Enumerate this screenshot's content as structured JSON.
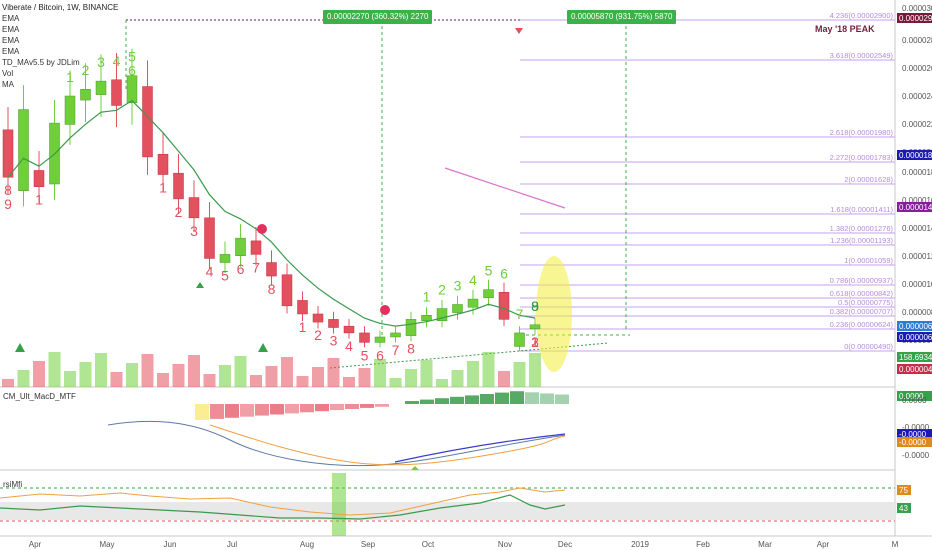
{
  "symbol_title": "Viberate / Bitcoin, 1W, BINANCE",
  "indicators": [
    "EMA",
    "EMA",
    "EMA",
    "EMA",
    "TD_MAv5.5 by JDLim",
    "Vol",
    "MA"
  ],
  "callouts": [
    {
      "text": "0.00002270 (360.32%) 2270"
    },
    {
      "text": "0.00005870 (931.75%) 5870"
    }
  ],
  "peak_label": "May '18 PEAK",
  "macd_label": "CM_Ult_MacD_MTF",
  "rsi_label": "rsiMfi",
  "colors": {
    "up": "#6ecf3a",
    "down": "#e3515f",
    "ema": "#3a9a4b",
    "fib": "#c7a0ec",
    "callout": "#3bb14b",
    "peakbox": "#7a1a3a"
  },
  "price_axis": [
    "0.00003000",
    "0.00002800",
    "0.00002600",
    "0.00002400",
    "0.00002200",
    "0.00002000",
    "0.00001850",
    "0.00001600",
    "0.00001400",
    "0.00001200",
    "0.00001000",
    "0.00000800",
    "0.00000600",
    "0.00000400"
  ],
  "price_tags": [
    {
      "text": "0.00002900",
      "color": "#7a1a3a"
    },
    {
      "text": "0.00001869",
      "color": "#1b1bb3"
    },
    {
      "text": "0.00001476",
      "color": "#8a1aa0"
    },
    {
      "text": "0.00000672",
      "color": "#2a7dd1"
    },
    {
      "text": "0.00000653",
      "color": "#1b1bb3"
    },
    {
      "text": "158.6934K",
      "color": "#36a04a"
    },
    {
      "text": "0.00000431",
      "color": "#c0304a"
    }
  ],
  "fib_levels": [
    {
      "label": "4.236(0.00002900)"
    },
    {
      "label": "3.618(0.00002549)"
    },
    {
      "label": "2.618(0.00001980)"
    },
    {
      "label": "2.272(0.00001783)"
    },
    {
      "label": "2(0.00001628)"
    },
    {
      "label": "1.618(0.00001411)"
    },
    {
      "label": "1.382(0.00001276)"
    },
    {
      "label": "1.236(0.00001193)"
    },
    {
      "label": "1(0.00001059)"
    },
    {
      "label": "0.786(0.00000937)"
    },
    {
      "label": "0.618(0.00000842)"
    },
    {
      "label": "0.5(0.00000775)"
    },
    {
      "label": "0.382(0.00000707)"
    },
    {
      "label": "0.236(0.00000624)"
    },
    {
      "label": "0(0.00000490)"
    }
  ],
  "macd_axis": [
    "0.0000",
    "-0.0000",
    "-0.0000"
  ],
  "macd_tags": [
    {
      "text": "0.0000",
      "color": "#36a04a"
    },
    {
      "text": "-0.0000",
      "color": "#1b1bb3"
    },
    {
      "text": "-0.0000",
      "color": "#e08a1e"
    }
  ],
  "rsi_tags": [
    {
      "text": "75",
      "color": "#e08a1e"
    },
    {
      "text": "43",
      "color": "#36a04a"
    }
  ],
  "time_axis": [
    "Apr",
    "May",
    "Jun",
    "Jul",
    "Aug",
    "Sep",
    "Oct",
    "Nov",
    "Dec",
    "2019",
    "Feb",
    "Mar",
    "Apr",
    "M"
  ],
  "chart_data": {
    "type": "candlestick",
    "interval": "1W",
    "candles": [
      {
        "o": 2.1e-05,
        "c": 1.75e-05,
        "up": false
      },
      {
        "o": 1.65e-05,
        "c": 2.25e-05,
        "up": true
      },
      {
        "o": 1.8e-05,
        "c": 1.68e-05,
        "up": false
      },
      {
        "o": 1.7e-05,
        "c": 2.15e-05,
        "up": true
      },
      {
        "o": 2.14e-05,
        "c": 2.35e-05,
        "up": true
      },
      {
        "o": 2.32e-05,
        "c": 2.4e-05,
        "up": true
      },
      {
        "o": 2.36e-05,
        "c": 2.46e-05,
        "up": true
      },
      {
        "o": 2.47e-05,
        "c": 2.28e-05,
        "up": false
      },
      {
        "o": 2.3e-05,
        "c": 2.5e-05,
        "up": true
      },
      {
        "o": 2.42e-05,
        "c": 1.9e-05,
        "up": false
      },
      {
        "o": 1.92e-05,
        "c": 1.77e-05,
        "up": false
      },
      {
        "o": 1.78e-05,
        "c": 1.59e-05,
        "up": false
      },
      {
        "o": 1.6e-05,
        "c": 1.45e-05,
        "up": false
      },
      {
        "o": 1.45e-05,
        "c": 1.15e-05,
        "up": false
      },
      {
        "o": 1.12e-05,
        "c": 1.18e-05,
        "up": true
      },
      {
        "o": 1.17e-05,
        "c": 1.3e-05,
        "up": true
      },
      {
        "o": 1.28e-05,
        "c": 1.18e-05,
        "up": false
      },
      {
        "o": 1.12e-05,
        "c": 1.02e-05,
        "up": false
      },
      {
        "o": 1.03e-05,
        "c": 8e-06,
        "up": false
      },
      {
        "o": 8.4e-06,
        "c": 7.4e-06,
        "up": false
      },
      {
        "o": 7.4e-06,
        "c": 6.8e-06,
        "up": false
      },
      {
        "o": 7e-06,
        "c": 6.4e-06,
        "up": false
      },
      {
        "o": 6.5e-06,
        "c": 6e-06,
        "up": false
      },
      {
        "o": 6e-06,
        "c": 5.3e-06,
        "up": false
      },
      {
        "o": 5.3e-06,
        "c": 5.7e-06,
        "up": true
      },
      {
        "o": 5.7e-06,
        "c": 6e-06,
        "up": true
      },
      {
        "o": 5.8e-06,
        "c": 7e-06,
        "up": true
      },
      {
        "o": 6.9e-06,
        "c": 7.3e-06,
        "up": true
      },
      {
        "o": 6.9e-06,
        "c": 7.8e-06,
        "up": true
      },
      {
        "o": 7.5e-06,
        "c": 8.1e-06,
        "up": true
      },
      {
        "o": 7.9e-06,
        "c": 8.5e-06,
        "up": true
      },
      {
        "o": 8.6e-06,
        "c": 9.2e-06,
        "up": true
      },
      {
        "o": 9e-06,
        "c": 7e-06,
        "up": false
      },
      {
        "o": 5e-06,
        "c": 6e-06,
        "up": true
      },
      {
        "o": 6.3e-06,
        "c": 6.6e-06,
        "up": true
      }
    ],
    "td_counts": [
      {
        "i": 0,
        "t": "8",
        "c": "#e3515f"
      },
      {
        "i": 0,
        "t": "9",
        "c": "#e3515f"
      },
      {
        "i": 2,
        "t": "1",
        "c": "#e3515f"
      },
      {
        "i": 4,
        "t": "1",
        "c": "#6ecf3a"
      },
      {
        "i": 5,
        "t": "2",
        "c": "#6ecf3a"
      },
      {
        "i": 6,
        "t": "3",
        "c": "#6ecf3a"
      },
      {
        "i": 7,
        "t": "4",
        "c": "#6ecf3a"
      },
      {
        "i": 8,
        "t": "5",
        "c": "#6ecf3a"
      },
      {
        "i": 8,
        "t": "6",
        "c": "#6ecf3a"
      },
      {
        "i": 10,
        "t": "1",
        "c": "#e3515f"
      },
      {
        "i": 11,
        "t": "2",
        "c": "#e3515f"
      },
      {
        "i": 12,
        "t": "3",
        "c": "#e3515f"
      },
      {
        "i": 13,
        "t": "4",
        "c": "#e3515f"
      },
      {
        "i": 14,
        "t": "5",
        "c": "#e3515f"
      },
      {
        "i": 15,
        "t": "6",
        "c": "#e3515f"
      },
      {
        "i": 16,
        "t": "7",
        "c": "#e3515f"
      },
      {
        "i": 17,
        "t": "8",
        "c": "#e3515f"
      },
      {
        "i": 19,
        "t": "1",
        "c": "#e3515f"
      },
      {
        "i": 20,
        "t": "2",
        "c": "#e3515f"
      },
      {
        "i": 21,
        "t": "3",
        "c": "#e3515f"
      },
      {
        "i": 22,
        "t": "4",
        "c": "#e3515f"
      },
      {
        "i": 23,
        "t": "5",
        "c": "#e3515f"
      },
      {
        "i": 24,
        "t": "6",
        "c": "#e3515f"
      },
      {
        "i": 25,
        "t": "7",
        "c": "#e3515f"
      },
      {
        "i": 26,
        "t": "8",
        "c": "#e3515f"
      },
      {
        "i": 27,
        "t": "1",
        "c": "#6ecf3a"
      },
      {
        "i": 28,
        "t": "2",
        "c": "#6ecf3a"
      },
      {
        "i": 29,
        "t": "3",
        "c": "#6ecf3a"
      },
      {
        "i": 30,
        "t": "4",
        "c": "#6ecf3a"
      },
      {
        "i": 31,
        "t": "5",
        "c": "#6ecf3a"
      },
      {
        "i": 32,
        "t": "6",
        "c": "#6ecf3a"
      },
      {
        "i": 33,
        "t": "7",
        "c": "#6ecf3a"
      },
      {
        "i": 34,
        "t": "8",
        "c": "#3a9a4b"
      },
      {
        "i": 35,
        "t": "9",
        "c": "#3a9a4b"
      },
      {
        "i": 36,
        "t": "1",
        "c": "#e3515f"
      },
      {
        "i": 37,
        "t": "2",
        "c": "#e3515f"
      },
      {
        "i": 38,
        "t": "3",
        "c": "#e3515f"
      }
    ]
  }
}
